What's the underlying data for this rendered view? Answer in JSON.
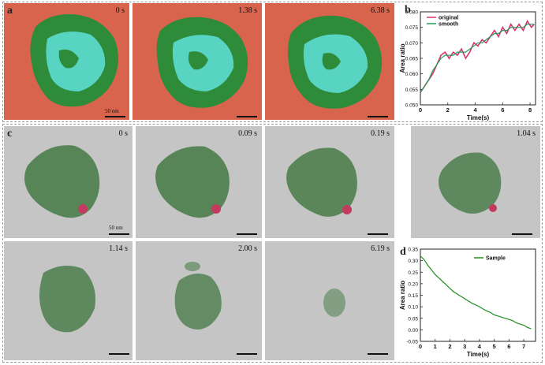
{
  "panel_labels": {
    "a": "a",
    "b": "b",
    "c": "c",
    "d": "d"
  },
  "row_a": {
    "times": [
      "0 s",
      "1.38 s",
      "6.38 s"
    ],
    "scale_text": "50 nm"
  },
  "row_c": {
    "times": [
      "0 s",
      "0.09 s",
      "0.19 s",
      "1.04 s"
    ],
    "scale_text": "50 nm"
  },
  "row_d_imgs": {
    "times": [
      "1.14 s",
      "2.00 s",
      "6.19 s"
    ]
  },
  "colors": {
    "segment_bg": "#d9644e",
    "segment_green": "#2e8b3a",
    "segment_cyan": "#5fe0da",
    "tem_bg": "#c5c5c5",
    "tem_particle": "#4b7d4b",
    "original": "#d6336c",
    "smooth": "#21a05a",
    "sample": "#1f8f1f"
  },
  "chart_data": [
    {
      "type": "line",
      "panel": "b",
      "xlabel": "Time(s)",
      "ylabel": "Area ratio",
      "xlim": [
        0,
        8.4
      ],
      "ylim": [
        0.05,
        0.08
      ],
      "xticks": [
        0,
        2,
        4,
        6,
        8
      ],
      "yticks": [
        0.05,
        0.055,
        0.06,
        0.065,
        0.07,
        0.075,
        0.08
      ],
      "ytick_labels": [
        "0.050",
        "0.055",
        "0.060",
        "0.065",
        "0.070",
        "0.075",
        "0.080"
      ],
      "legend_position": "top-left",
      "series": [
        {
          "name": "original",
          "color": "#d6336c",
          "x": [
            0,
            0.3,
            0.6,
            0.9,
            1.2,
            1.5,
            1.8,
            2.1,
            2.4,
            2.7,
            3.0,
            3.3,
            3.6,
            3.9,
            4.2,
            4.5,
            4.8,
            5.1,
            5.4,
            5.7,
            6.0,
            6.3,
            6.6,
            6.9,
            7.2,
            7.5,
            7.8,
            8.1,
            8.3
          ],
          "y": [
            0.054,
            0.056,
            0.058,
            0.06,
            0.063,
            0.066,
            0.067,
            0.065,
            0.067,
            0.066,
            0.068,
            0.065,
            0.067,
            0.07,
            0.069,
            0.071,
            0.07,
            0.072,
            0.074,
            0.072,
            0.075,
            0.073,
            0.076,
            0.074,
            0.076,
            0.074,
            0.077,
            0.075,
            0.076
          ]
        },
        {
          "name": "smooth",
          "color": "#21a05a",
          "x": [
            0,
            0.3,
            0.6,
            0.9,
            1.2,
            1.5,
            1.8,
            2.1,
            2.4,
            2.7,
            3.0,
            3.3,
            3.6,
            3.9,
            4.2,
            4.5,
            4.8,
            5.1,
            5.4,
            5.7,
            6.0,
            6.3,
            6.6,
            6.9,
            7.2,
            7.5,
            7.8,
            8.1,
            8.3
          ],
          "y": [
            0.054,
            0.056,
            0.058,
            0.061,
            0.063,
            0.065,
            0.066,
            0.066,
            0.066,
            0.067,
            0.067,
            0.067,
            0.068,
            0.069,
            0.07,
            0.07,
            0.071,
            0.072,
            0.073,
            0.073,
            0.074,
            0.074,
            0.075,
            0.075,
            0.075,
            0.075,
            0.076,
            0.076,
            0.076
          ]
        }
      ]
    },
    {
      "type": "line",
      "panel": "d",
      "xlabel": "Time(s)",
      "ylabel": "Area ratio",
      "xlim": [
        0,
        7.8
      ],
      "ylim": [
        -0.05,
        0.35
      ],
      "xticks": [
        0,
        1,
        2,
        3,
        4,
        5,
        6,
        7
      ],
      "yticks": [
        -0.05,
        0.0,
        0.05,
        0.1,
        0.15,
        0.2,
        0.25,
        0.3,
        0.35
      ],
      "ytick_labels": [
        "-0.05",
        "0.00",
        "0.05",
        "0.10",
        "0.15",
        "0.20",
        "0.25",
        "0.30",
        "0.35"
      ],
      "legend_position": "top-right",
      "series": [
        {
          "name": "Sample",
          "color": "#1f8f1f",
          "x": [
            0,
            0.25,
            0.5,
            0.75,
            1.0,
            1.25,
            1.5,
            1.75,
            2.0,
            2.25,
            2.5,
            2.75,
            3.0,
            3.25,
            3.5,
            3.75,
            4.0,
            4.25,
            4.5,
            4.75,
            5.0,
            5.25,
            5.5,
            5.75,
            6.0,
            6.25,
            6.5,
            6.75,
            7.0,
            7.25,
            7.5
          ],
          "y": [
            0.32,
            0.305,
            0.28,
            0.26,
            0.24,
            0.225,
            0.21,
            0.195,
            0.18,
            0.165,
            0.155,
            0.145,
            0.135,
            0.125,
            0.115,
            0.108,
            0.1,
            0.09,
            0.082,
            0.075,
            0.065,
            0.06,
            0.055,
            0.05,
            0.045,
            0.04,
            0.03,
            0.025,
            0.02,
            0.01,
            0.005
          ]
        }
      ]
    }
  ]
}
